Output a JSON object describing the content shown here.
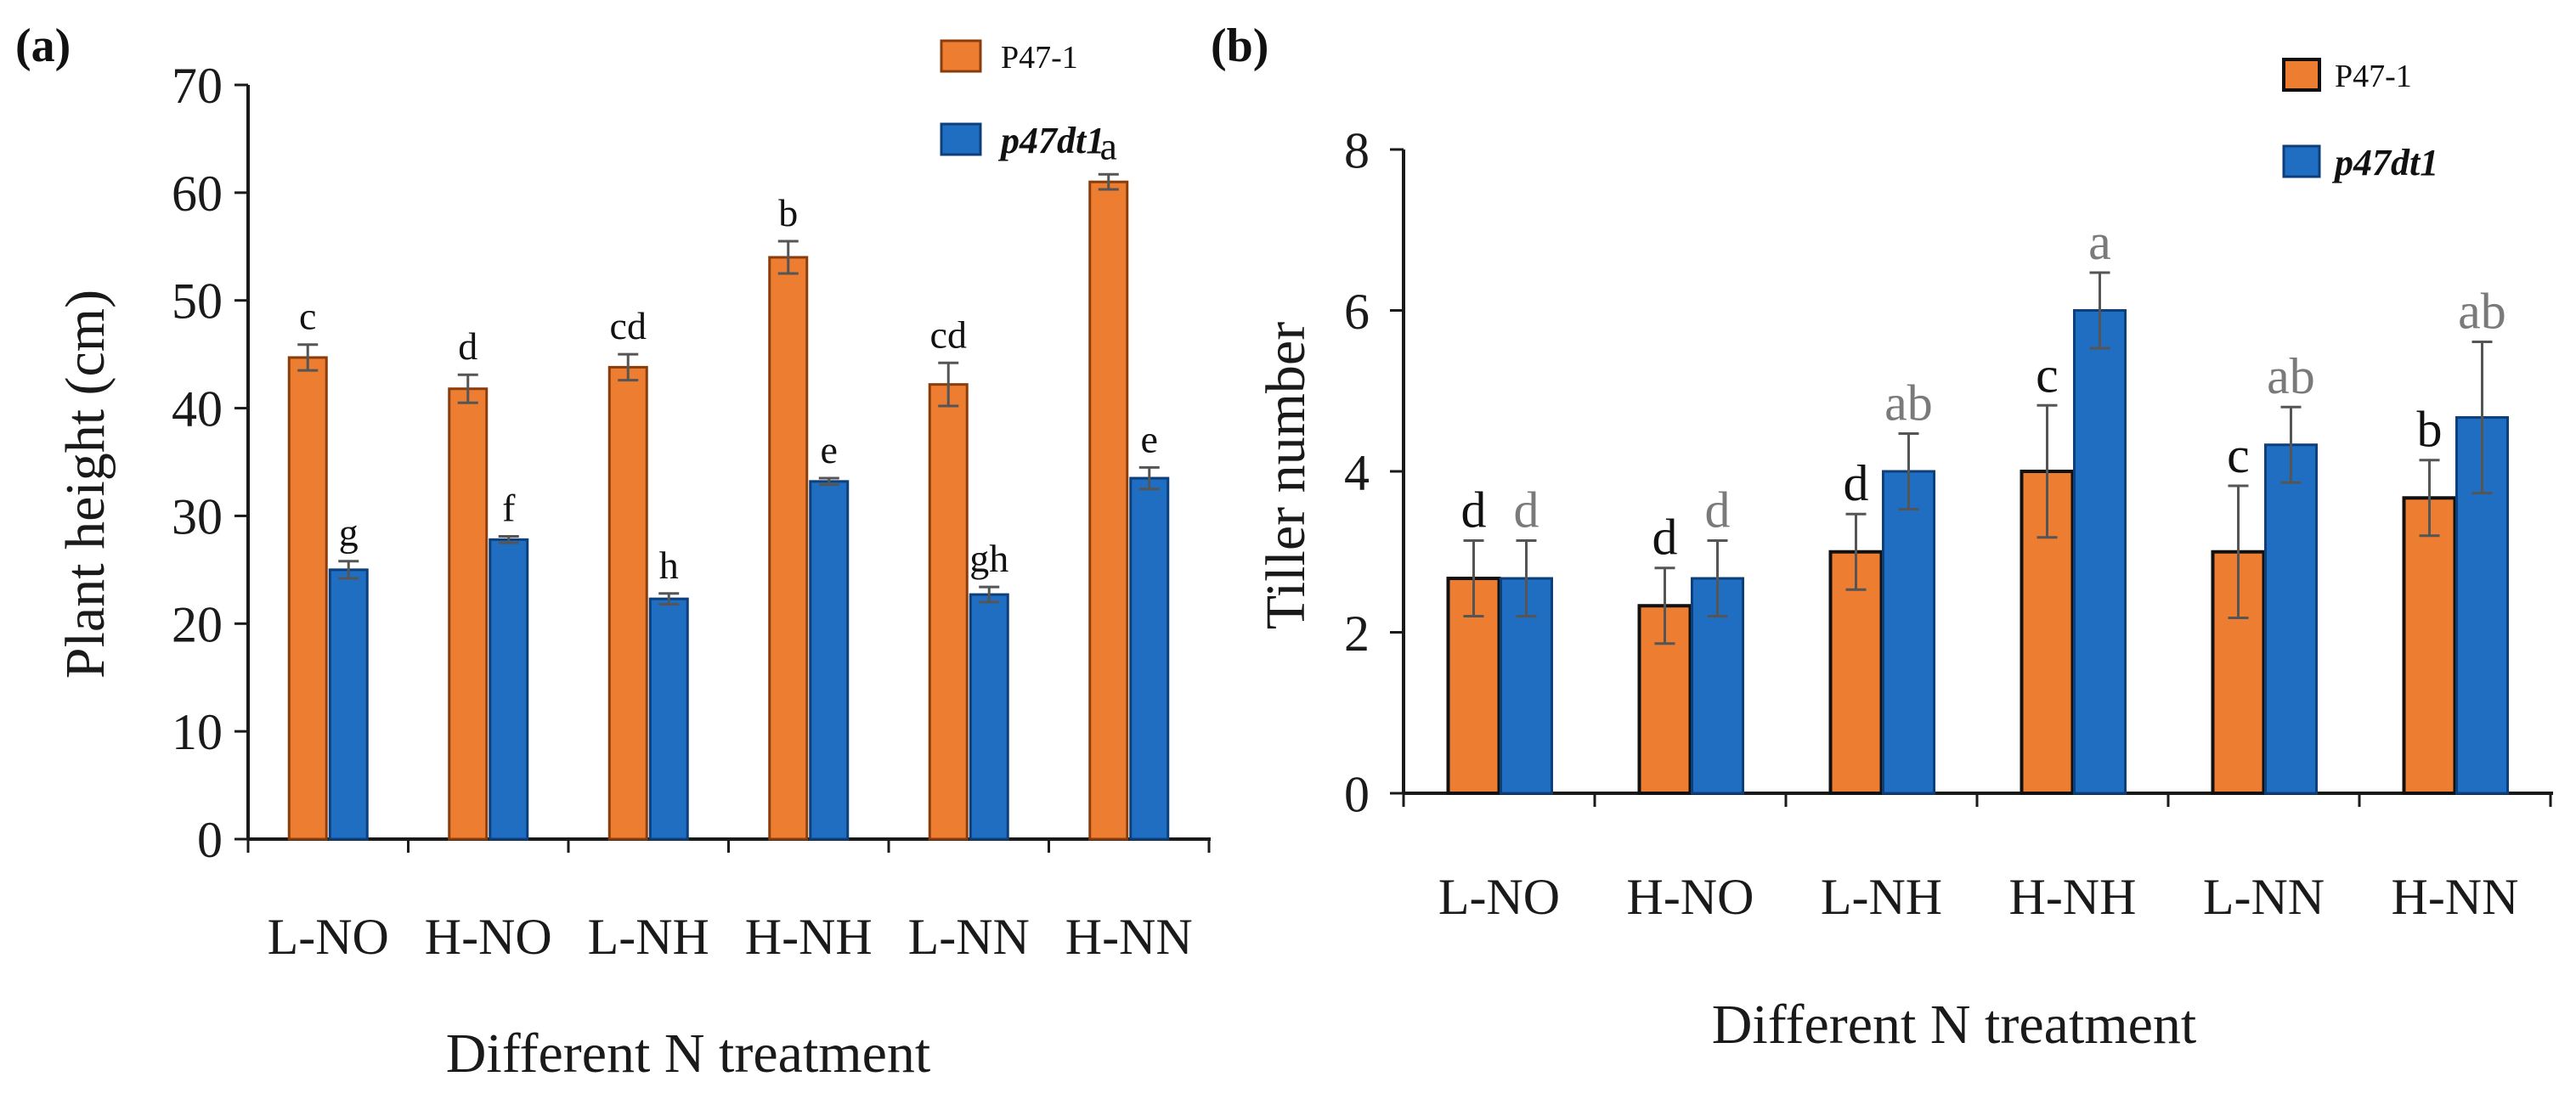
{
  "colors": {
    "p471": "#ED7D31",
    "p47dt1": "#1F6EC2",
    "axis": "#1a1a1a",
    "error": "#555555",
    "sig_b": "#7a7a7a"
  },
  "chart_data": [
    {
      "panel": "(a)",
      "type": "bar",
      "ylabel": "Plant height (cm)",
      "xlabel": "Different N treatment",
      "ylim": [
        0,
        70
      ],
      "yticks": [
        0,
        10,
        20,
        30,
        40,
        50,
        60,
        70
      ],
      "categories": [
        "L-NO",
        "H-NO",
        "L-NH",
        "H-NH",
        "L-NN",
        "H-NN"
      ],
      "legend_position": "top-right",
      "series": [
        {
          "name": "P47-1",
          "values": [
            44.7,
            41.8,
            43.8,
            54,
            42.2,
            61
          ],
          "errors": [
            1.2,
            1.3,
            1.2,
            1.5,
            2,
            0.7
          ],
          "letters": [
            "c",
            "d",
            "cd",
            "b",
            "cd",
            "a"
          ]
        },
        {
          "name": "p47dt1",
          "values": [
            25,
            27.8,
            22.3,
            33.2,
            22.7,
            33.5
          ],
          "errors": [
            0.8,
            0.3,
            0.5,
            0.3,
            0.7,
            1
          ],
          "letters": [
            "g",
            "f",
            "h",
            "e",
            "gh",
            "e"
          ]
        }
      ]
    },
    {
      "panel": "(b)",
      "type": "bar",
      "ylabel": "Tiller number",
      "xlabel": "Different N treatment",
      "ylim": [
        0,
        8
      ],
      "yticks": [
        0,
        2,
        4,
        6,
        8
      ],
      "categories": [
        "L-NO",
        "H-NO",
        "L-NH",
        "H-NH",
        "L-NN",
        "H-NN"
      ],
      "legend_position": "top-right",
      "series": [
        {
          "name": "P47-1",
          "values": [
            2.67,
            2.33,
            3,
            4,
            3,
            3.67
          ],
          "errors": [
            0.47,
            0.47,
            0.47,
            0.82,
            0.82,
            0.47
          ],
          "letters": [
            "d",
            "d",
            "d",
            "c",
            "c",
            "b"
          ]
        },
        {
          "name": "p47dt1",
          "values": [
            2.67,
            2.67,
            4,
            6,
            4.33,
            4.67
          ],
          "errors": [
            0.47,
            0.47,
            0.47,
            0.47,
            0.47,
            0.94
          ],
          "letters": [
            "d",
            "d",
            "ab",
            "a",
            "ab",
            "ab"
          ]
        }
      ]
    }
  ]
}
